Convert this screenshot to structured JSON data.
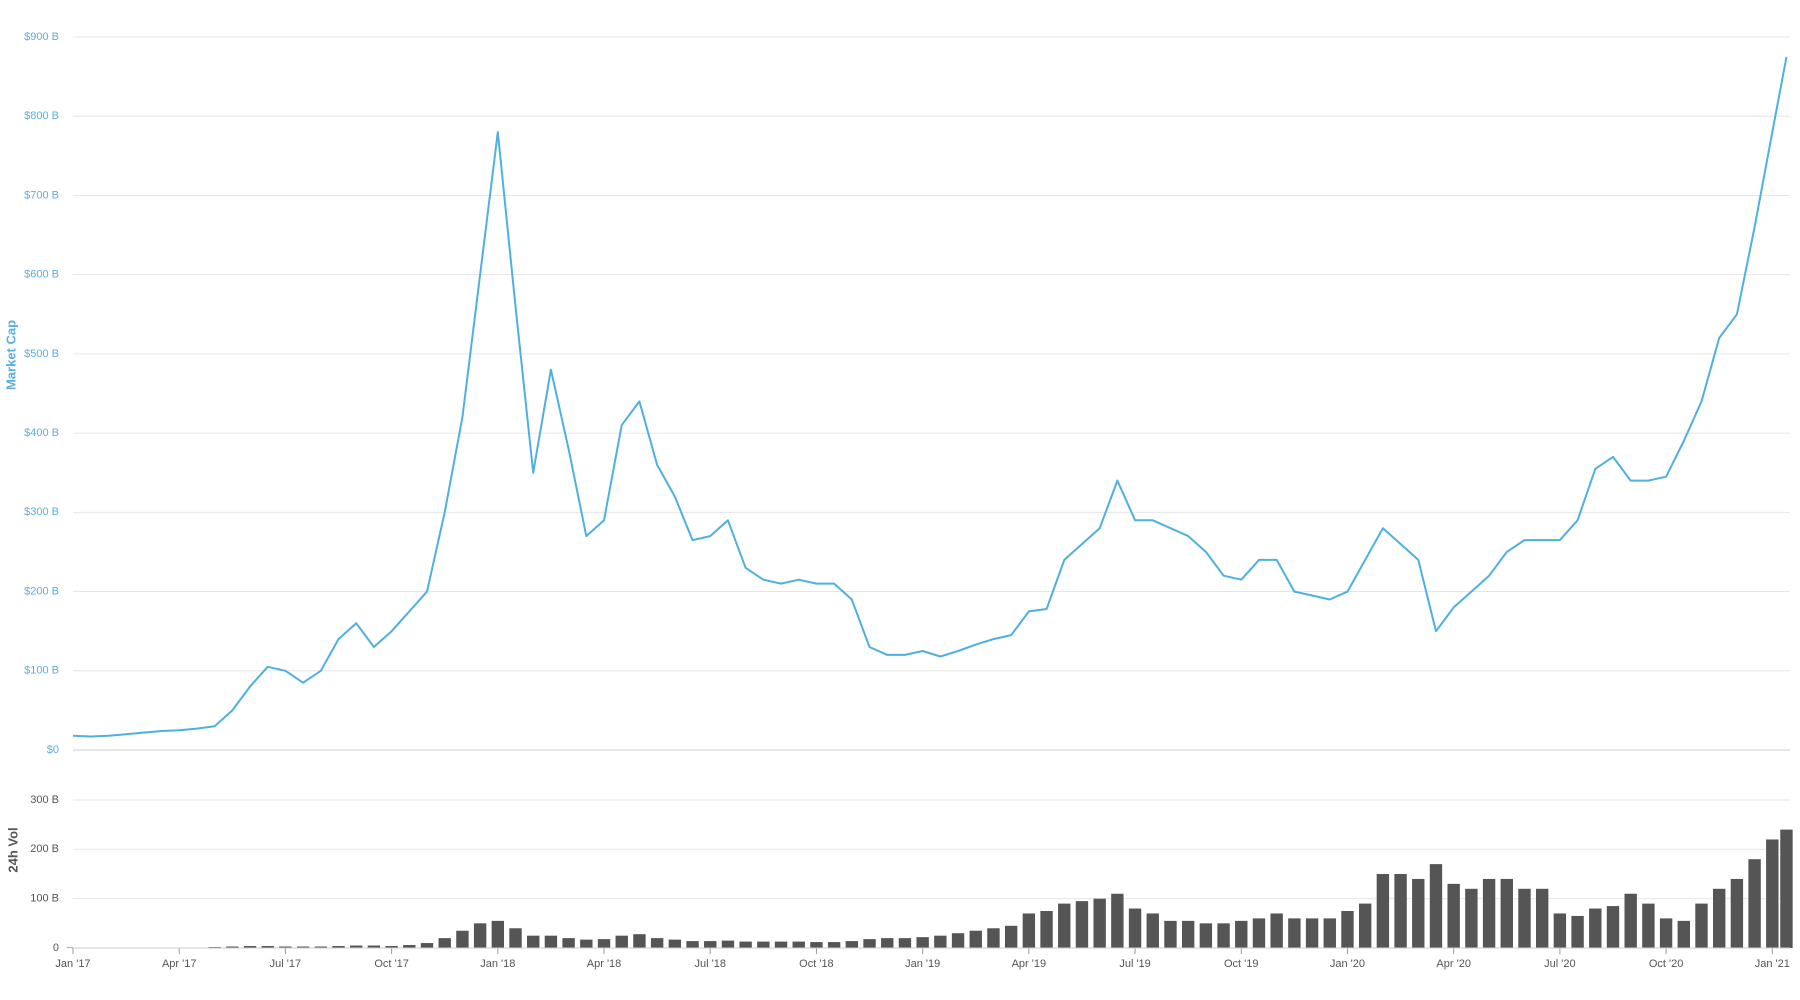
{
  "chart_data": [
    {
      "type": "line",
      "y_label": "Market Cap",
      "color": "#4fb0e0",
      "label_color": "#5aaee0",
      "grid": true,
      "xlim": [
        0,
        48.5
      ],
      "ylim": [
        0,
        900
      ],
      "yticks": [
        {
          "value": 0,
          "label": "$0"
        },
        {
          "value": 100,
          "label": "$100 B"
        },
        {
          "value": 200,
          "label": "$200 B"
        },
        {
          "value": 300,
          "label": "$300 B"
        },
        {
          "value": 400,
          "label": "$400 B"
        },
        {
          "value": 500,
          "label": "$500 B"
        },
        {
          "value": 600,
          "label": "$600 B"
        },
        {
          "value": 700,
          "label": "$700 B"
        },
        {
          "value": 800,
          "label": "$800 B"
        },
        {
          "value": 900,
          "label": "$900 B"
        }
      ],
      "x": [
        0,
        0.5,
        1,
        1.5,
        2,
        2.5,
        3,
        3.5,
        4,
        4.5,
        5,
        5.5,
        6,
        6.5,
        7,
        7.5,
        8,
        8.5,
        9,
        9.5,
        10,
        10.5,
        11,
        11.5,
        12,
        12.5,
        13,
        13.5,
        14,
        14.5,
        15,
        15.5,
        16,
        16.5,
        17,
        17.5,
        18,
        18.5,
        19,
        19.5,
        20,
        20.5,
        21,
        21.5,
        22,
        22.5,
        23,
        23.5,
        24,
        24.5,
        25,
        25.5,
        26,
        26.5,
        27,
        27.5,
        28,
        28.5,
        29,
        29.5,
        30,
        30.5,
        31,
        31.5,
        32,
        32.5,
        33,
        33.5,
        34,
        34.5,
        35,
        35.5,
        36,
        36.5,
        37,
        37.5,
        38,
        38.5,
        39,
        39.5,
        40,
        40.5,
        41,
        41.5,
        42,
        42.5,
        43,
        43.5,
        44,
        44.5,
        45,
        45.5,
        46,
        46.5,
        47,
        47.5,
        48,
        48.4
      ],
      "values": [
        18,
        17,
        18,
        20,
        22,
        24,
        25,
        27,
        30,
        50,
        80,
        105,
        100,
        85,
        100,
        140,
        160,
        130,
        150,
        175,
        200,
        300,
        420,
        600,
        780,
        560,
        350,
        480,
        380,
        270,
        290,
        410,
        440,
        360,
        320,
        265,
        270,
        290,
        230,
        215,
        210,
        215,
        210,
        210,
        190,
        130,
        120,
        120,
        125,
        118,
        125,
        133,
        140,
        145,
        175,
        178,
        240,
        260,
        280,
        340,
        290,
        290,
        280,
        270,
        250,
        220,
        215,
        240,
        240,
        200,
        195,
        190,
        200,
        240,
        280,
        260,
        240,
        150,
        180,
        200,
        220,
        250,
        265,
        265,
        265,
        290,
        355,
        370,
        340,
        340,
        345,
        390,
        440,
        520,
        550,
        660,
        780,
        875
      ]
    },
    {
      "type": "bar",
      "y_label": "24h Vol",
      "color": "#555555",
      "label_color": "#555555",
      "grid": true,
      "xlim": [
        0,
        48.5
      ],
      "ylim": [
        0,
        300
      ],
      "yticks": [
        0,
        {
          "value": 100,
          "label": "100 B"
        },
        {
          "value": 200,
          "label": "200 B"
        },
        {
          "value": 300,
          "label": "300 B"
        }
      ],
      "xticks": [
        {
          "value": 0,
          "label": "Jan '17"
        },
        {
          "value": 3,
          "label": "Apr '17"
        },
        {
          "value": 6,
          "label": "Jul '17"
        },
        {
          "value": 9,
          "label": "Oct '17"
        },
        {
          "value": 12,
          "label": "Jan '18"
        },
        {
          "value": 15,
          "label": "Apr '18"
        },
        {
          "value": 18,
          "label": "Jul '18"
        },
        {
          "value": 21,
          "label": "Oct '18"
        },
        {
          "value": 24,
          "label": "Jan '19"
        },
        {
          "value": 27,
          "label": "Apr '19"
        },
        {
          "value": 30,
          "label": "Jul '19"
        },
        {
          "value": 33,
          "label": "Oct '19"
        },
        {
          "value": 36,
          "label": "Jan '20"
        },
        {
          "value": 39,
          "label": "Apr '20"
        },
        {
          "value": 42,
          "label": "Jul '20"
        },
        {
          "value": 45,
          "label": "Oct '20"
        },
        {
          "value": 48,
          "label": "Jan '21"
        }
      ],
      "x": [
        0,
        0.5,
        1,
        1.5,
        2,
        2.5,
        3,
        3.5,
        4,
        4.5,
        5,
        5.5,
        6,
        6.5,
        7,
        7.5,
        8,
        8.5,
        9,
        9.5,
        10,
        10.5,
        11,
        11.5,
        12,
        12.5,
        13,
        13.5,
        14,
        14.5,
        15,
        15.5,
        16,
        16.5,
        17,
        17.5,
        18,
        18.5,
        19,
        19.5,
        20,
        20.5,
        21,
        21.5,
        22,
        22.5,
        23,
        23.5,
        24,
        24.5,
        25,
        25.5,
        26,
        26.5,
        27,
        27.5,
        28,
        28.5,
        29,
        29.5,
        30,
        30.5,
        31,
        31.5,
        32,
        32.5,
        33,
        33.5,
        34,
        34.5,
        35,
        35.5,
        36,
        36.5,
        37,
        37.5,
        38,
        38.5,
        39,
        39.5,
        40,
        40.5,
        41,
        41.5,
        42,
        42.5,
        43,
        43.5,
        44,
        44.5,
        45,
        45.5,
        46,
        46.5,
        47,
        47.5,
        48,
        48.4
      ],
      "values": [
        1,
        1,
        1,
        1,
        1,
        1,
        1,
        1,
        2,
        3,
        4,
        4,
        3,
        3,
        3,
        4,
        5,
        5,
        4,
        6,
        10,
        20,
        35,
        50,
        55,
        40,
        25,
        25,
        20,
        17,
        18,
        25,
        28,
        20,
        17,
        14,
        14,
        15,
        13,
        13,
        13,
        13,
        12,
        12,
        14,
        18,
        20,
        20,
        22,
        25,
        30,
        35,
        40,
        45,
        70,
        75,
        90,
        95,
        100,
        110,
        80,
        70,
        55,
        55,
        50,
        50,
        55,
        60,
        70,
        60,
        60,
        60,
        75,
        90,
        150,
        150,
        140,
        170,
        130,
        120,
        140,
        140,
        120,
        120,
        70,
        65,
        80,
        85,
        110,
        90,
        60,
        55,
        90,
        120,
        140,
        180,
        220,
        240
      ]
    }
  ]
}
